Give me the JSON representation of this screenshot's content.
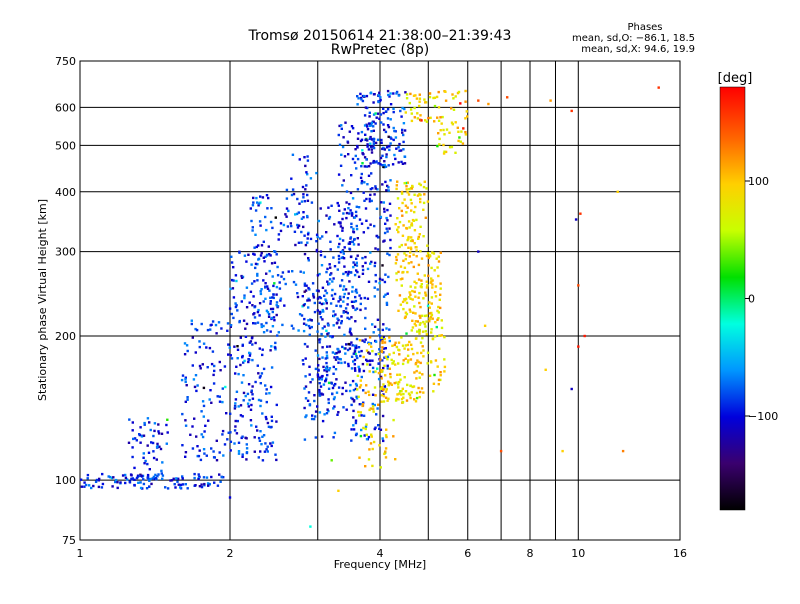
{
  "chart_data": {
    "type": "scatter",
    "title": "Tromsø 20150614 21:38:00–21:39:43",
    "subtitle": "RwPretec (8p)",
    "xlabel": "Frequency [MHz]",
    "ylabel": "Stationary phase Virtual Height [km]",
    "x_scale": "log",
    "y_scale": "log",
    "xlim": [
      1,
      16
    ],
    "ylim": [
      75,
      750
    ],
    "x_ticks": [
      1,
      2,
      4,
      6,
      8,
      10,
      16
    ],
    "x_tick_labels": [
      "1",
      "2",
      "4",
      "6",
      "8",
      "10",
      "16"
    ],
    "y_ticks": [
      75,
      100,
      200,
      300,
      400,
      500,
      600,
      750
    ],
    "y_tick_labels": [
      "75",
      "100",
      "200",
      "300",
      "400",
      "500",
      "600",
      "750"
    ],
    "x_grid": [
      2,
      4,
      10
    ],
    "x_minor_grid": [
      3,
      5,
      6,
      7,
      8,
      9
    ],
    "y_grid": [
      100,
      200,
      300,
      400,
      500,
      600
    ],
    "grid": true,
    "phase_info": {
      "title": "Phases",
      "line_o": "mean, sd,O: −86.1, 18.5",
      "line_x": "mean, sd,X:  94.6, 19.9"
    },
    "colorbar": {
      "label": "[deg]",
      "range": [
        -180,
        180
      ],
      "ticks": [
        100,
        0,
        -100
      ],
      "tick_labels": [
        "100",
        "0",
        "−100"
      ],
      "colormap": [
        "#000000",
        "#3a006e",
        "#0000dc",
        "#0096ff",
        "#00ffe0",
        "#00e000",
        "#c8ff00",
        "#ffd000",
        "#ff6400",
        "#ff0000"
      ]
    },
    "series": [
      {
        "mode": "O",
        "approx_phase_deg": -90,
        "clusters": [
          {
            "f": [
              1.0,
              1.95
            ],
            "h": [
              96,
              103
            ],
            "n": 120
          },
          {
            "f": [
              1.25,
              1.5
            ],
            "h": [
              100,
              135
            ],
            "n": 60
          },
          {
            "f": [
              1.6,
              2.0
            ],
            "h": [
              110,
              220
            ],
            "n": 110
          },
          {
            "f": [
              2.0,
              2.5
            ],
            "h": [
              110,
              300
            ],
            "n": 240
          },
          {
            "f": [
              2.2,
              2.9
            ],
            "h": [
              200,
              400
            ],
            "n": 140
          },
          {
            "f": [
              2.6,
              3.0
            ],
            "h": [
              300,
              480
            ],
            "n": 40
          },
          {
            "f": [
              2.8,
              3.3
            ],
            "h": [
              120,
              260
            ],
            "n": 120
          },
          {
            "f": [
              3.0,
              3.6
            ],
            "h": [
              140,
              380
            ],
            "n": 200
          },
          {
            "f": [
              3.3,
              4.2
            ],
            "h": [
              170,
              560
            ],
            "n": 300
          },
          {
            "f": [
              3.6,
              4.5
            ],
            "h": [
              450,
              650
            ],
            "n": 150
          },
          {
            "f": [
              3.5,
              4.1
            ],
            "h": [
              120,
              200
            ],
            "n": 80
          }
        ]
      },
      {
        "mode": "X",
        "approx_phase_deg": 95,
        "clusters": [
          {
            "f": [
              3.6,
              4.3
            ],
            "h": [
              105,
              200
            ],
            "n": 80
          },
          {
            "f": [
              4.0,
              4.9
            ],
            "h": [
              145,
              200
            ],
            "n": 120
          },
          {
            "f": [
              4.3,
              5.3
            ],
            "h": [
              200,
              300
            ],
            "n": 150
          },
          {
            "f": [
              4.3,
              5.0
            ],
            "h": [
              300,
              420
            ],
            "n": 90
          },
          {
            "f": [
              4.8,
              5.4
            ],
            "h": [
              150,
              230
            ],
            "n": 40
          },
          {
            "f": [
              5.2,
              6.0
            ],
            "h": [
              480,
              650
            ],
            "n": 50
          },
          {
            "f": [
              4.5,
              5.3
            ],
            "h": [
              560,
              650
            ],
            "n": 40
          }
        ]
      },
      {
        "mode": "scattered",
        "points": [
          {
            "f": 6.3,
            "h": 620,
            "phase": 150
          },
          {
            "f": 6.6,
            "h": 610,
            "phase": 120
          },
          {
            "f": 7.2,
            "h": 630,
            "phase": 150
          },
          {
            "f": 8.8,
            "h": 620,
            "phase": 120
          },
          {
            "f": 9.7,
            "h": 590,
            "phase": 160
          },
          {
            "f": 10.1,
            "h": 360,
            "phase": 160
          },
          {
            "f": 9.9,
            "h": 350,
            "phase": -110
          },
          {
            "f": 10.0,
            "h": 255,
            "phase": 150
          },
          {
            "f": 10.0,
            "h": 190,
            "phase": 170
          },
          {
            "f": 10.3,
            "h": 200,
            "phase": 170
          },
          {
            "f": 12.0,
            "h": 400,
            "phase": 100
          },
          {
            "f": 12.3,
            "h": 115,
            "phase": 130
          },
          {
            "f": 14.5,
            "h": 660,
            "phase": 160
          },
          {
            "f": 8.6,
            "h": 170,
            "phase": 100
          },
          {
            "f": 9.3,
            "h": 115,
            "phase": 100
          },
          {
            "f": 9.7,
            "h": 155,
            "phase": -110
          },
          {
            "f": 7.0,
            "h": 115,
            "phase": 150
          },
          {
            "f": 6.5,
            "h": 210,
            "phase": 100
          },
          {
            "f": 6.3,
            "h": 300,
            "phase": -110
          },
          {
            "f": 3.3,
            "h": 95,
            "phase": 100
          },
          {
            "f": 3.2,
            "h": 110,
            "phase": 40
          },
          {
            "f": 2.9,
            "h": 80,
            "phase": -20
          },
          {
            "f": 2.0,
            "h": 92,
            "phase": -100
          }
        ]
      }
    ]
  }
}
